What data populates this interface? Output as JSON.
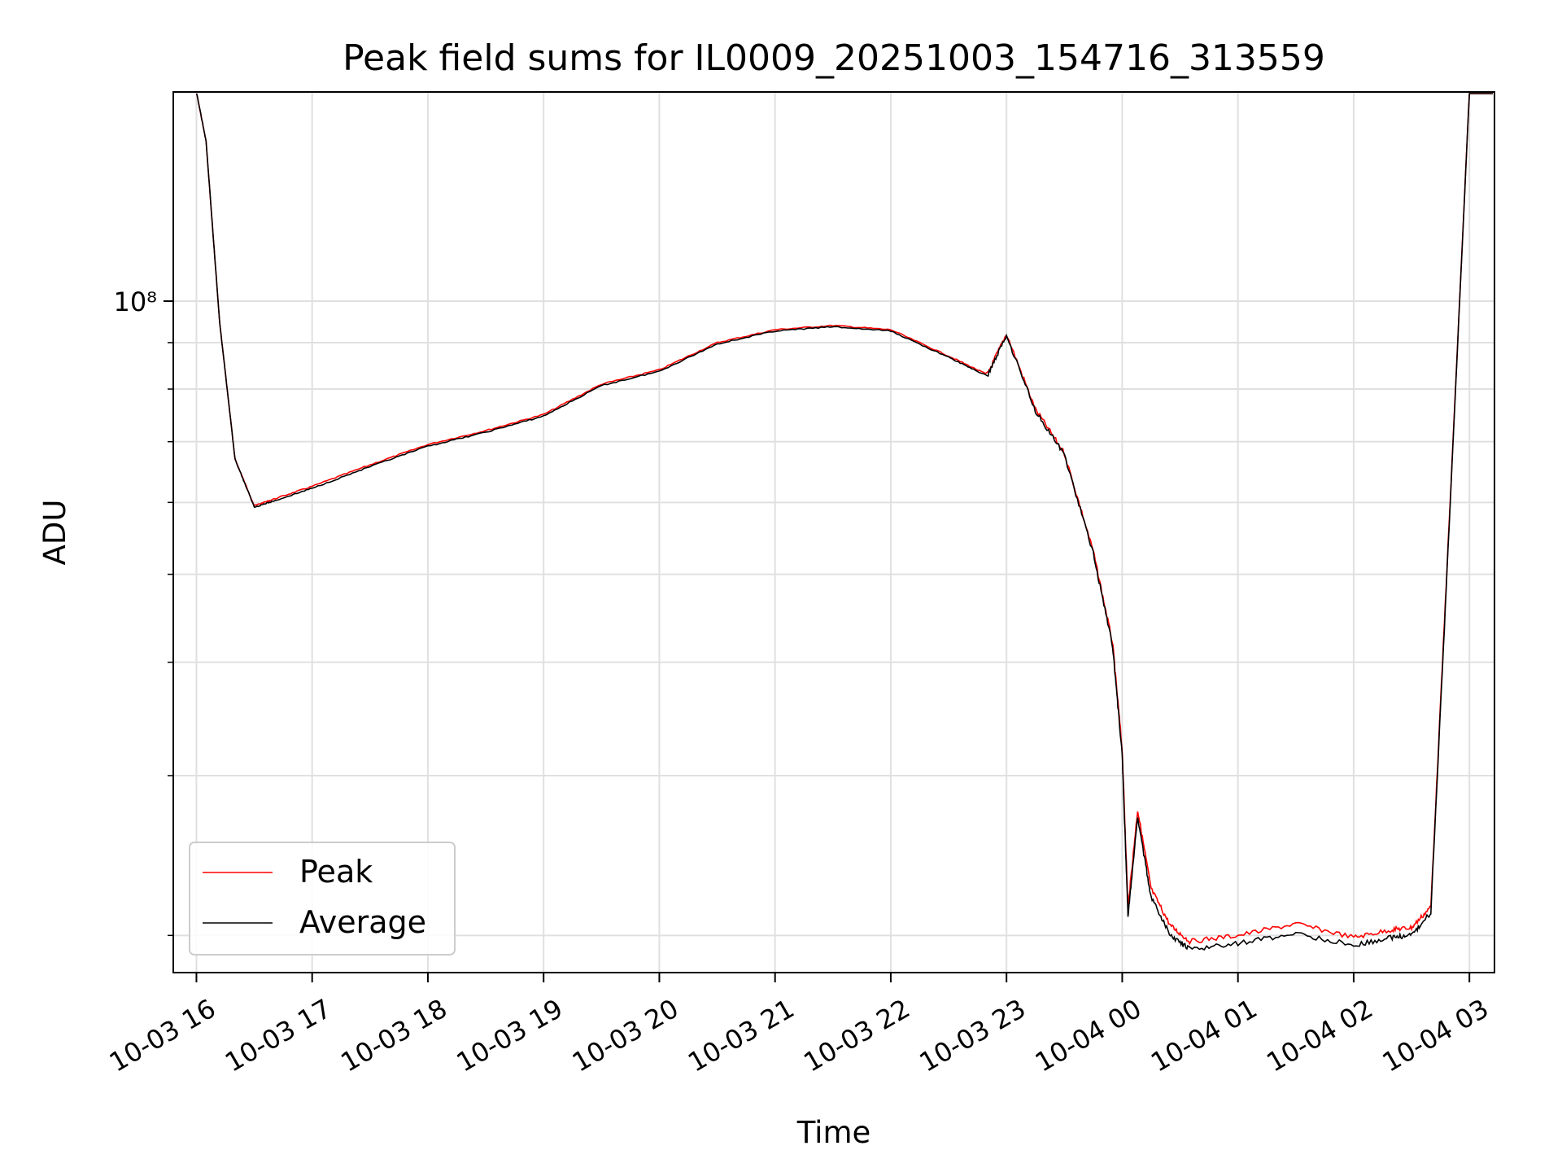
{
  "chart_data": {
    "type": "line",
    "title": "Peak field sums for IL0009_20251003_154716_313559",
    "xlabel": "Time",
    "ylabel": "ADU",
    "yscale": "log",
    "ylim": [
      18200000,
      170000000
    ],
    "xlim": [
      "2025-10-03 15:48",
      "2025-10-04 03:13"
    ],
    "grid": true,
    "legend_position": "lower-left",
    "colors": {
      "Peak": "#ff0000",
      "Average": "#000000"
    },
    "x_ticks": [
      "10-03 16",
      "10-03 17",
      "10-03 18",
      "10-03 19",
      "10-03 20",
      "10-03 21",
      "10-03 22",
      "10-03 23",
      "10-04 00",
      "10-04 01",
      "10-04 02",
      "10-04 03"
    ],
    "y_ticks": [
      {
        "value": 100000000,
        "label": "10⁸"
      }
    ],
    "x": [
      "2025-10-03 16:00",
      "2025-10-03 16:05",
      "2025-10-03 16:12",
      "2025-10-03 16:20",
      "2025-10-03 16:30",
      "2025-10-03 16:40",
      "2025-10-03 17:00",
      "2025-10-03 17:30",
      "2025-10-03 18:00",
      "2025-10-03 18:30",
      "2025-10-03 19:00",
      "2025-10-03 19:30",
      "2025-10-03 20:00",
      "2025-10-03 20:30",
      "2025-10-03 21:00",
      "2025-10-03 21:30",
      "2025-10-03 22:00",
      "2025-10-03 22:30",
      "2025-10-03 22:50",
      "2025-10-03 23:00",
      "2025-10-03 23:15",
      "2025-10-03 23:30",
      "2025-10-03 23:45",
      "2025-10-03 23:55",
      "2025-10-04 00:00",
      "2025-10-04 00:03",
      "2025-10-04 00:08",
      "2025-10-04 00:15",
      "2025-10-04 00:25",
      "2025-10-04 00:35",
      "2025-10-04 01:00",
      "2025-10-04 01:30",
      "2025-10-04 02:00",
      "2025-10-04 02:20",
      "2025-10-04 02:30",
      "2025-10-04 02:40",
      "2025-10-04 02:50",
      "2025-10-04 03:00"
    ],
    "series": [
      {
        "name": "Peak",
        "values": [
          170000000,
          150000000,
          95000000,
          67000000,
          59500000,
          60500000,
          62500000,
          66000000,
          69500000,
          72000000,
          75000000,
          81000000,
          84000000,
          90000000,
          93000000,
          94000000,
          93000000,
          87000000,
          83000000,
          92000000,
          76000000,
          68000000,
          53000000,
          42000000,
          32000000,
          21500000,
          27500000,
          22500000,
          20500000,
          19700000,
          20000000,
          20600000,
          19900000,
          20300000,
          20400000,
          21500000,
          60000000,
          170000000
        ]
      },
      {
        "name": "Average",
        "values": [
          170000000,
          150000000,
          95000000,
          67000000,
          59300000,
          60200000,
          62200000,
          65700000,
          69200000,
          71700000,
          74700000,
          80700000,
          83700000,
          89700000,
          92700000,
          93700000,
          92700000,
          86700000,
          82700000,
          91700000,
          75700000,
          67700000,
          52700000,
          41700000,
          31600000,
          21000000,
          27000000,
          22000000,
          20000000,
          19300000,
          19600000,
          20100000,
          19500000,
          19900000,
          20000000,
          21200000,
          59500000,
          170000000
        ]
      }
    ]
  }
}
